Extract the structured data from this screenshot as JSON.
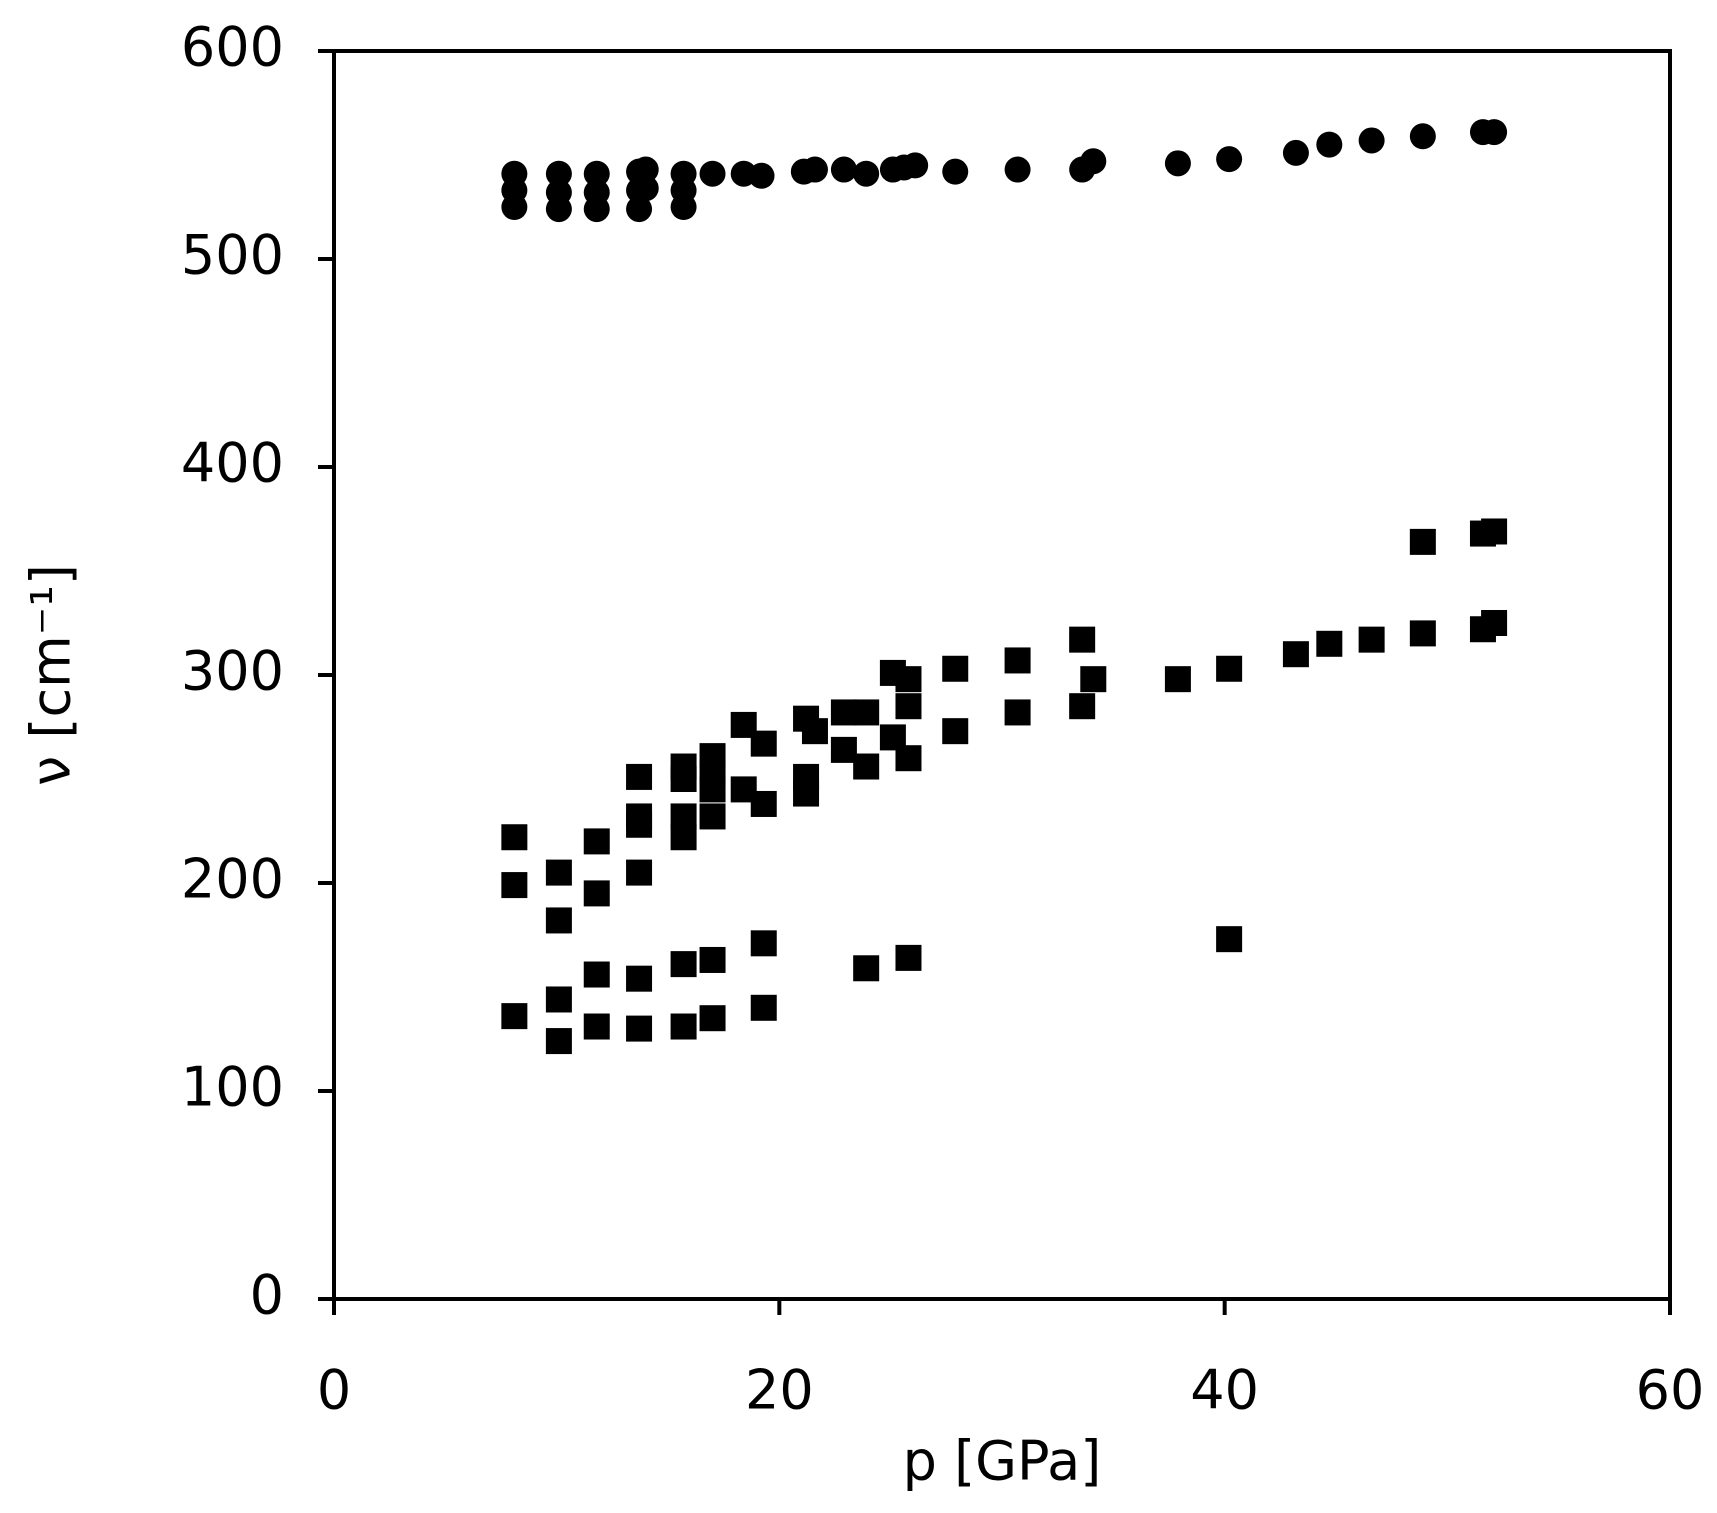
{
  "chart_data": {
    "type": "scatter",
    "x_label": "p [GPa]",
    "y_label": "ν [cm⁻¹]",
    "xlim": [
      0,
      60
    ],
    "xticks": [
      0,
      20,
      40,
      60
    ],
    "ylim": [
      0,
      600
    ],
    "yticks": [
      0,
      100,
      200,
      300,
      400,
      500,
      600
    ],
    "series": [
      {
        "color": "#000000",
        "marker": "circle",
        "x": [
          8.1,
          8.1,
          8.1,
          10.1,
          10.1,
          10.1,
          11.8,
          11.8,
          11.8,
          13.7,
          13.7,
          13.7,
          14,
          14,
          15.7,
          15.7,
          15.7,
          17,
          18.4,
          19.2,
          21.1,
          21.6,
          22.9,
          23.9,
          25.1,
          25.6,
          26.1,
          27.9,
          30.7,
          33.6,
          34.1,
          37.9,
          40.2,
          43.2,
          44.7,
          46.6,
          48.9,
          51.6,
          52.1
        ],
        "values": [
          541,
          533,
          525,
          541,
          532,
          524,
          541,
          532,
          524,
          542,
          533,
          524,
          543,
          534,
          541,
          533,
          525,
          541,
          541,
          540,
          542,
          543,
          543,
          541,
          543,
          544,
          545,
          542,
          543,
          543,
          547,
          546,
          548,
          551,
          555,
          557,
          559,
          561,
          561
        ]
      },
      {
        "color": "#000000",
        "marker": "square",
        "x": [
          8.1,
          8.1,
          8.1,
          10.1,
          10.1,
          10.1,
          10.1,
          11.8,
          11.8,
          11.8,
          11.8,
          13.7,
          13.7,
          13.7,
          13.7,
          13.7,
          13.7,
          15.7,
          15.7,
          15.7,
          15.7,
          15.7,
          15.7,
          17,
          17,
          17,
          17,
          17,
          17,
          18.4,
          18.4,
          19.3,
          19.3,
          19.3,
          19.3,
          21.2,
          21.2,
          21.2,
          21.6,
          22.9,
          22.9,
          23.9,
          23.9,
          23.9,
          25.1,
          25.1,
          25.8,
          25.8,
          25.8,
          25.8,
          27.9,
          27.9,
          30.7,
          30.7,
          33.6,
          33.6,
          34.1,
          37.9,
          40.2,
          40.2,
          43.2,
          44.7,
          46.6,
          48.9,
          48.9,
          51.6,
          51.6,
          52.1,
          52.1
        ],
        "values": [
          222,
          199,
          136,
          205,
          182,
          144,
          124,
          220,
          195,
          156,
          131,
          251,
          232,
          228,
          205,
          154,
          130,
          256,
          250,
          232,
          222,
          161,
          131,
          261,
          253,
          245,
          232,
          163,
          135,
          276,
          245,
          267,
          238,
          171,
          140,
          279,
          251,
          243,
          273,
          282,
          264,
          282,
          256,
          159,
          301,
          270,
          298,
          285,
          260,
          164,
          303,
          273,
          307,
          282,
          317,
          285,
          298,
          298,
          303,
          173,
          310,
          315,
          317,
          320,
          364,
          322,
          368,
          325,
          369
        ]
      }
    ]
  }
}
